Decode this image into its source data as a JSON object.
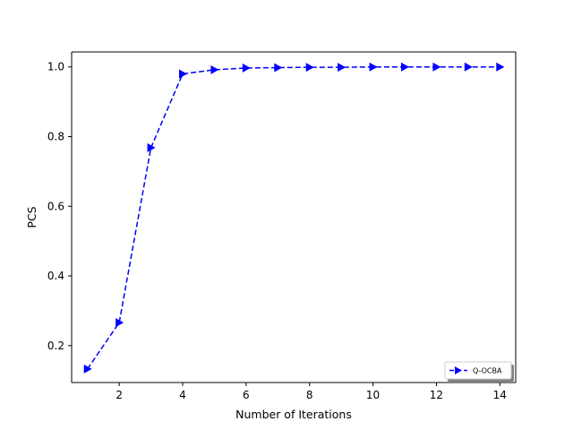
{
  "chart_data": {
    "type": "line",
    "title": "",
    "xlabel": "Number of Iterations",
    "ylabel": "PCS",
    "xlim": [
      0.5,
      14.5
    ],
    "ylim": [
      0.094,
      1.043
    ],
    "xticks": [
      2,
      4,
      6,
      8,
      10,
      12,
      14
    ],
    "yticks": [
      0.2,
      0.4,
      0.6,
      0.8,
      1.0
    ],
    "xtick_labels": [
      "2",
      "4",
      "6",
      "8",
      "10",
      "12",
      "14"
    ],
    "ytick_labels": [
      "0.2",
      "0.4",
      "0.6",
      "0.8",
      "1.0"
    ],
    "grid": false,
    "legend_position": "lower-right",
    "series": [
      {
        "name": "Q-OCBA",
        "color": "#0000ff",
        "line_style": "dashed",
        "marker": "triangle-right",
        "x": [
          1,
          2,
          3,
          4,
          5,
          6,
          7,
          8,
          9,
          10,
          11,
          12,
          13,
          14
        ],
        "y": [
          0.133,
          0.266,
          0.768,
          0.98,
          0.992,
          0.997,
          0.998,
          0.999,
          0.999,
          1.0,
          1.0,
          1.0,
          1.0,
          1.0
        ]
      }
    ]
  }
}
